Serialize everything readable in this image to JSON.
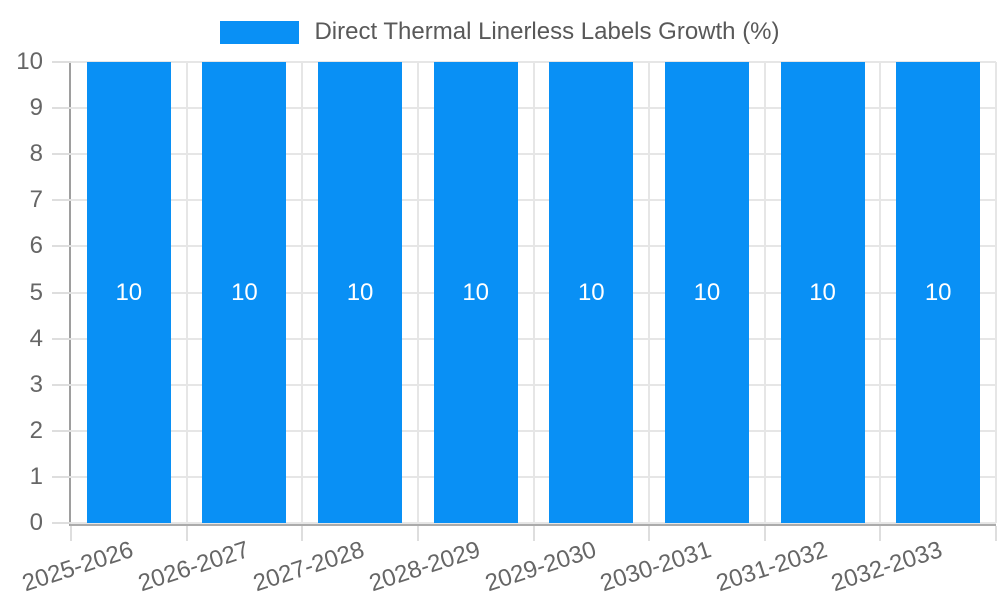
{
  "legend": {
    "label": "Direct Thermal Linerless Labels Growth (%)"
  },
  "colors": {
    "bar": "#0990f5",
    "bar_value_text": "#ffffff",
    "axis_text": "#666666",
    "legend_text": "#595959",
    "gridline": "#e6e6e6",
    "axis_line": "#9e9e9e"
  },
  "chart_data": {
    "type": "bar",
    "title": "Direct Thermal Linerless Labels Growth (%)",
    "categories": [
      "2025-2026",
      "2026-2027",
      "2027-2028",
      "2028-2029",
      "2029-2030",
      "2030-2031",
      "2031-2032",
      "2032-2033"
    ],
    "values": [
      10,
      10,
      10,
      10,
      10,
      10,
      10,
      10
    ],
    "bar_value_labels": [
      "10",
      "10",
      "10",
      "10",
      "10",
      "10",
      "10",
      "10"
    ],
    "xlabel": "",
    "ylabel": "",
    "ylim": [
      0,
      10
    ],
    "ytick_step": 1,
    "ytick_labels": [
      "0",
      "1",
      "2",
      "3",
      "4",
      "5",
      "6",
      "7",
      "8",
      "9",
      "10"
    ],
    "grid": true,
    "legend_position": "top",
    "x_label_rotation_deg": -18
  }
}
